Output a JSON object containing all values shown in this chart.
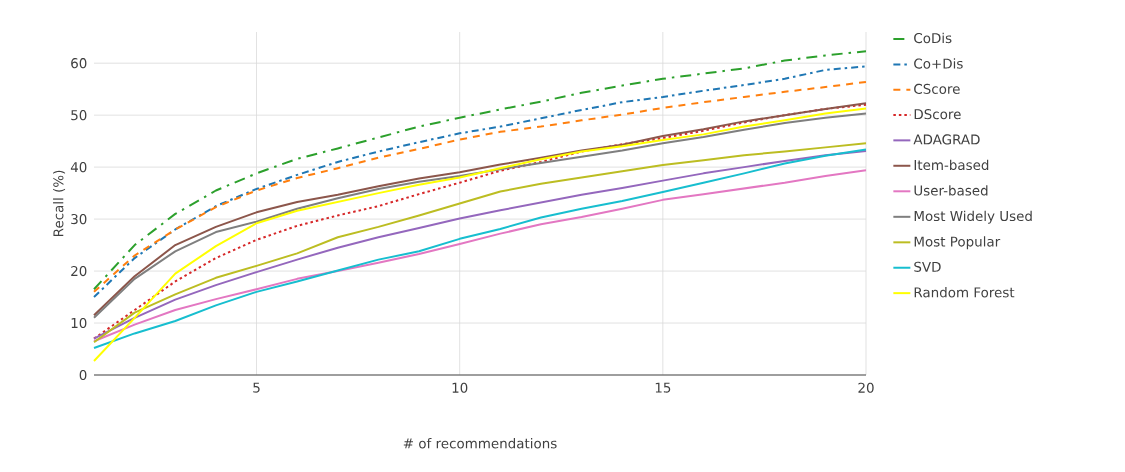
{
  "chart_data": {
    "type": "line",
    "xlabel": "# of recommendations",
    "ylabel": "Recall (%)",
    "x": [
      1,
      2,
      3,
      4,
      5,
      6,
      7,
      8,
      9,
      10,
      11,
      12,
      13,
      14,
      15,
      16,
      17,
      18,
      19,
      20
    ],
    "xlim": [
      1,
      20
    ],
    "ylim": [
      0,
      66
    ],
    "xticks": [
      5,
      10,
      15,
      20
    ],
    "yticks": [
      0,
      10,
      20,
      30,
      40,
      50,
      60
    ],
    "grid": true,
    "legend": "right",
    "marker": "none",
    "series": [
      {
        "name": "CoDis",
        "color": "#2ca02c",
        "line_style": "longdashdot",
        "values": [
          16.5,
          25,
          31,
          35.5,
          38.8,
          41.6,
          43.6,
          45.7,
          47.8,
          49.5,
          51.1,
          52.6,
          54.3,
          55.7,
          57,
          58,
          59,
          60.5,
          61.5,
          62.3
        ]
      },
      {
        "name": "Co+Dis",
        "color": "#1f77b4",
        "line_style": "dashdot",
        "values": [
          15,
          22.5,
          28,
          32.5,
          35.8,
          38.5,
          41,
          43,
          44.8,
          46.5,
          47.8,
          49.4,
          51,
          52.5,
          53.5,
          54.7,
          55.8,
          57,
          58.7,
          59.4
        ]
      },
      {
        "name": "CScore",
        "color": "#ff7f0e",
        "line_style": "dashed",
        "values": [
          16,
          23,
          28,
          32.3,
          35.5,
          37.9,
          39.8,
          41.8,
          43.5,
          45.3,
          46.8,
          47.8,
          49,
          50.1,
          51.4,
          52.5,
          53.5,
          54.5,
          55.4,
          56.4
        ]
      },
      {
        "name": "DScore",
        "color": "#d62728",
        "line_style": "dotted",
        "values": [
          7,
          12.5,
          18,
          22.5,
          26,
          28.7,
          30.7,
          32.5,
          34.8,
          37,
          39.3,
          41,
          43,
          44.4,
          45.6,
          47,
          48.6,
          50,
          51.2,
          52
        ]
      },
      {
        "name": "ADAGRAD",
        "color": "#9467bd",
        "line_style": "solid",
        "values": [
          7,
          11,
          14.5,
          17.3,
          19.8,
          22.2,
          24.5,
          26.5,
          28.3,
          30.1,
          31.7,
          33.2,
          34.7,
          36,
          37.4,
          38.8,
          40,
          41.2,
          42.3,
          43.1
        ]
      },
      {
        "name": "Item-based",
        "color": "#8c564b",
        "line_style": "solid",
        "values": [
          11.5,
          19,
          25,
          28.5,
          31.3,
          33.3,
          34.7,
          36.3,
          37.8,
          39,
          40.5,
          41.8,
          43.2,
          44.3,
          46,
          47.3,
          48.8,
          50,
          51.2,
          52.3
        ]
      },
      {
        "name": "User-based",
        "color": "#e377c2",
        "line_style": "solid",
        "values": [
          6.5,
          9.7,
          12.5,
          14.6,
          16.5,
          18.5,
          20,
          21.6,
          23.3,
          25.2,
          27.2,
          29,
          30.4,
          32,
          33.7,
          34.8,
          35.9,
          37,
          38.3,
          39.4
        ]
      },
      {
        "name": "Most Widely Used",
        "color": "#7f7f7f",
        "line_style": "solid",
        "values": [
          11,
          18.5,
          23.8,
          27.5,
          29.5,
          32,
          34,
          35.8,
          37.2,
          38.3,
          39.6,
          40.8,
          42,
          43.2,
          44.6,
          45.8,
          47.2,
          48.5,
          49.5,
          50.3
        ]
      },
      {
        "name": "Most Popular",
        "color": "#bcbd22",
        "line_style": "solid",
        "values": [
          6.3,
          12,
          15.5,
          18.7,
          21,
          23.4,
          26.5,
          28.5,
          30.7,
          33,
          35.3,
          36.8,
          38,
          39.2,
          40.4,
          41.3,
          42.3,
          43,
          43.8,
          44.6
        ]
      },
      {
        "name": "SVD",
        "color": "#17becf",
        "line_style": "solid",
        "values": [
          5.2,
          8,
          10.4,
          13.4,
          16,
          18,
          20.1,
          22.2,
          23.8,
          26.2,
          28.1,
          30.3,
          32,
          33.5,
          35.2,
          37,
          38.8,
          40.7,
          42.2,
          43.4
        ]
      },
      {
        "name": "Random Forest",
        "color": "#ffff00",
        "line_style": "solid",
        "values": [
          2.7,
          11,
          19.5,
          24.8,
          29.2,
          31.6,
          33.3,
          35,
          36.6,
          38,
          39.8,
          41.5,
          43,
          44,
          45.2,
          46.3,
          47.8,
          49,
          50.3,
          51.3
        ]
      }
    ]
  }
}
